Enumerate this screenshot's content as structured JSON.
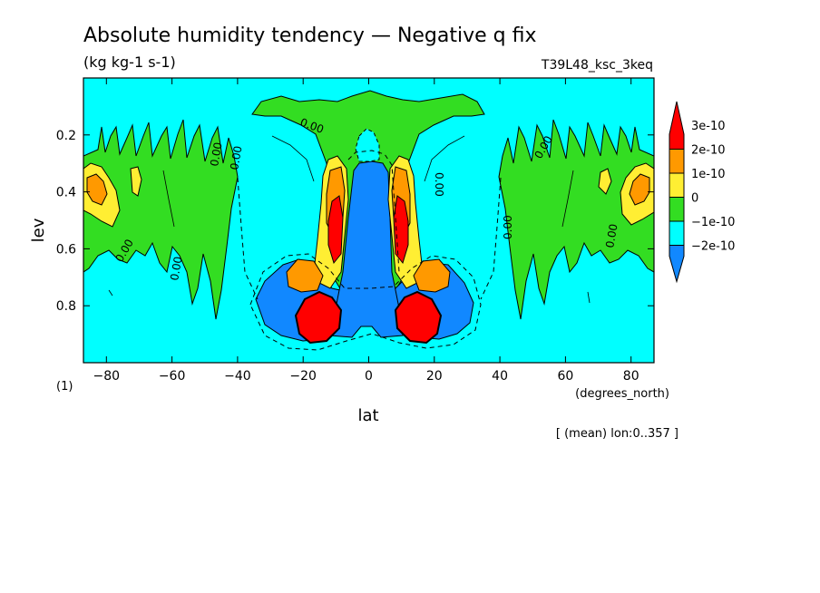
{
  "chart_data": {
    "type": "heatmap",
    "title": "Absolute humidity tendency — Negative q fix",
    "units": "(kg kg-1 s-1)",
    "run_label": "T39L48_ksc_3keq",
    "xlabel": "lat",
    "xunits": "(degrees_north)",
    "ylabel": "lev",
    "yunits": "(1)",
    "footnote": "[ (mean) lon:0..357 ]",
    "xlim": [
      -87,
      87
    ],
    "ylim": [
      0.0,
      1.0
    ],
    "y_inverted": true,
    "x_ticks": [
      -80,
      -60,
      -40,
      -20,
      0,
      20,
      40,
      60,
      80
    ],
    "x_tick_labels": [
      "−80",
      "−60",
      "−40",
      "−20",
      "0",
      "20",
      "40",
      "60",
      "80"
    ],
    "y_ticks": [
      0.2,
      0.4,
      0.6,
      0.8
    ],
    "y_tick_labels": [
      "0.2",
      "0.4",
      "0.6",
      "0.8"
    ],
    "contour_label": "0.00",
    "colorbar": {
      "levels": [
        {
          "label": "3e-10",
          "color": "#ff0000"
        },
        {
          "label": "2e-10",
          "color": "#ff9900"
        },
        {
          "label": "1e-10",
          "color": "#ffee33"
        },
        {
          "label": "0",
          "color": "#33dd22"
        },
        {
          "label": "−1e-10",
          "color": "#00ffff"
        },
        {
          "label": "−2e-10",
          "color": "#1188ff"
        }
      ],
      "background_color": "#00ffff"
    },
    "regions": [
      {
        "kind": "positive",
        "lat_range": [
          -87,
          -42
        ],
        "lev_range": [
          0.27,
          0.62
        ],
        "level": "0"
      },
      {
        "kind": "positive",
        "lat_range": [
          42,
          87
        ],
        "lev_range": [
          0.27,
          0.62
        ],
        "level": "0"
      },
      {
        "kind": "positive",
        "lat_range": [
          -30,
          30
        ],
        "lev_range": [
          0.06,
          0.35
        ],
        "level": "0"
      },
      {
        "kind": "negative",
        "lat_range": [
          -5,
          5
        ],
        "lev_range": [
          0.3,
          0.92
        ],
        "level": "−2e-10"
      },
      {
        "kind": "maximum",
        "lat": -17,
        "lev": 0.88,
        "level": "3e-10"
      },
      {
        "kind": "maximum",
        "lat": 17,
        "lev": 0.88,
        "level": "3e-10"
      },
      {
        "kind": "maximum",
        "lat": -10,
        "lev": 0.5,
        "level": "3e-10"
      },
      {
        "kind": "maximum",
        "lat": 10,
        "lev": 0.5,
        "level": "3e-10"
      }
    ]
  }
}
